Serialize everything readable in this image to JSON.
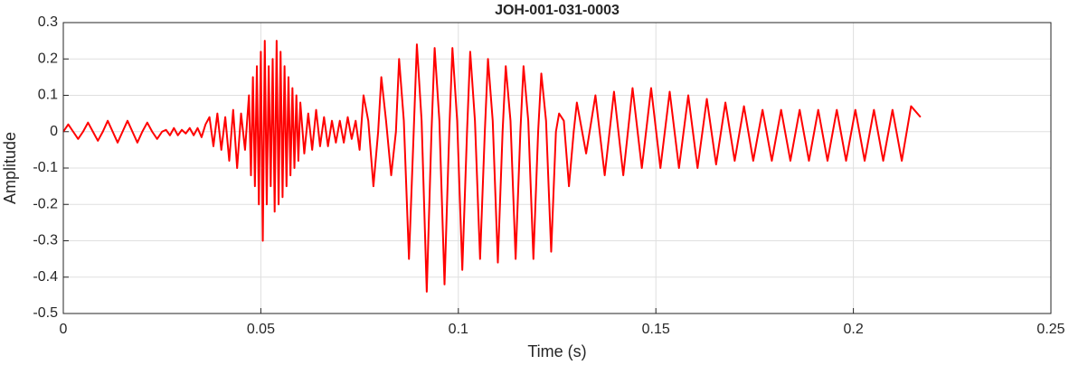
{
  "chart_data": {
    "type": "line",
    "title": "JOH-001-031-0003",
    "x_label": "Time (s)",
    "y_label": "Amplitude",
    "color": "#ff0000",
    "grid": true,
    "xlim": [
      0,
      0.25
    ],
    "xticks": [
      0,
      0.05,
      0.1,
      0.15,
      0.2,
      0.25
    ],
    "ylim": [
      -0.5,
      0.3
    ],
    "yticks": [
      -0.5,
      -0.4,
      -0.3,
      -0.2,
      -0.1,
      0,
      0.1,
      0.2,
      0.3
    ],
    "x": [
      0,
      0.00125,
      0.0025,
      0.00375,
      0.005,
      0.00625,
      0.0075,
      0.00875,
      0.01,
      0.01125,
      0.0125,
      0.01375,
      0.015,
      0.01625,
      0.0175,
      0.01875,
      0.02,
      0.02125,
      0.0225,
      0.02375,
      0.025,
      0.026,
      0.027,
      0.028,
      0.029,
      0.03,
      0.031,
      0.032,
      0.033,
      0.034,
      0.035,
      0.036,
      0.037,
      0.038,
      0.039,
      0.04,
      0.041,
      0.042,
      0.043,
      0.044,
      0.045,
      0.046,
      0.047,
      0.0475,
      0.048,
      0.0485,
      0.049,
      0.0495,
      0.05,
      0.0505,
      0.051,
      0.0515,
      0.052,
      0.0525,
      0.053,
      0.0535,
      0.054,
      0.0545,
      0.055,
      0.0555,
      0.056,
      0.0565,
      0.057,
      0.0575,
      0.058,
      0.0585,
      0.059,
      0.0595,
      0.06,
      0.061,
      0.062,
      0.063,
      0.064,
      0.065,
      0.066,
      0.067,
      0.068,
      0.069,
      0.07,
      0.071,
      0.072,
      0.073,
      0.074,
      0.075,
      0.076,
      0.0772,
      0.0785,
      0.0797,
      0.0805,
      0.0817,
      0.083,
      0.0842,
      0.085,
      0.0862,
      0.0875,
      0.0887,
      0.0895,
      0.0907,
      0.092,
      0.0932,
      0.094,
      0.0952,
      0.0965,
      0.0977,
      0.0985,
      0.0997,
      0.101,
      0.1022,
      0.103,
      0.1042,
      0.1055,
      0.1067,
      0.1075,
      0.1087,
      0.11,
      0.1112,
      0.112,
      0.1132,
      0.1145,
      0.1157,
      0.1165,
      0.1177,
      0.119,
      0.1202,
      0.121,
      0.1222,
      0.1235,
      0.1247,
      0.1255,
      0.1267,
      0.128,
      0.1292,
      0.13,
      0.13235,
      0.1347,
      0.13705,
      0.1394,
      0.14175,
      0.1441,
      0.14645,
      0.1488,
      0.15115,
      0.1535,
      0.15585,
      0.1582,
      0.16055,
      0.1629,
      0.16525,
      0.1676,
      0.16995,
      0.1723,
      0.17465,
      0.177,
      0.17935,
      0.1817,
      0.18405,
      0.1864,
      0.18875,
      0.1911,
      0.19345,
      0.1958,
      0.19815,
      0.2005,
      0.20285,
      0.2052,
      0.20755,
      0.2099,
      0.21225,
      0.2146,
      0.217
    ],
    "values": [
      0,
      0.02,
      0,
      -0.02,
      0,
      0.025,
      0,
      -0.025,
      0,
      0.03,
      0,
      -0.03,
      0,
      0.03,
      0,
      -0.03,
      0,
      0.025,
      0,
      -0.02,
      0,
      0.005,
      -0.01,
      0.01,
      -0.01,
      0.005,
      -0.005,
      0.01,
      -0.01,
      0.01,
      -0.015,
      0.02,
      0.04,
      -0.04,
      0.05,
      -0.05,
      0.04,
      -0.08,
      0.06,
      -0.1,
      0.05,
      -0.05,
      0.1,
      -0.12,
      0.15,
      -0.15,
      0.18,
      -0.2,
      0.22,
      -0.3,
      0.25,
      -0.2,
      0.18,
      -0.15,
      0.2,
      -0.22,
      0.25,
      -0.2,
      0.22,
      -0.18,
      0.18,
      -0.15,
      0.15,
      -0.12,
      0.12,
      -0.1,
      0.1,
      -0.08,
      0.08,
      -0.06,
      0.05,
      -0.05,
      0.06,
      -0.04,
      0.04,
      -0.04,
      0.03,
      -0.03,
      0.03,
      -0.03,
      0.04,
      -0.02,
      0.03,
      -0.05,
      0.1,
      0.03,
      -0.15,
      0,
      0.15,
      0.03,
      -0.12,
      0,
      0.2,
      0.03,
      -0.35,
      0,
      0.24,
      0.03,
      -0.44,
      0,
      0.23,
      0.03,
      -0.42,
      0,
      0.23,
      0.03,
      -0.38,
      0,
      0.22,
      0.03,
      -0.35,
      0,
      0.2,
      0.03,
      -0.36,
      0,
      0.18,
      0.03,
      -0.35,
      0,
      0.18,
      0.03,
      -0.35,
      0,
      0.16,
      0.03,
      -0.33,
      0,
      0.05,
      0.03,
      -0.15,
      0,
      0.08,
      -0.06,
      0.1,
      -0.12,
      0.11,
      -0.12,
      0.12,
      -0.1,
      0.12,
      -0.1,
      0.11,
      -0.1,
      0.1,
      -0.1,
      0.09,
      -0.09,
      0.08,
      -0.08,
      0.07,
      -0.08,
      0.06,
      -0.08,
      0.06,
      -0.08,
      0.06,
      -0.08,
      0.06,
      -0.08,
      0.06,
      -0.08,
      0.06,
      -0.08,
      0.06,
      -0.08,
      0.06,
      -0.08,
      0.07,
      0.04
    ]
  }
}
